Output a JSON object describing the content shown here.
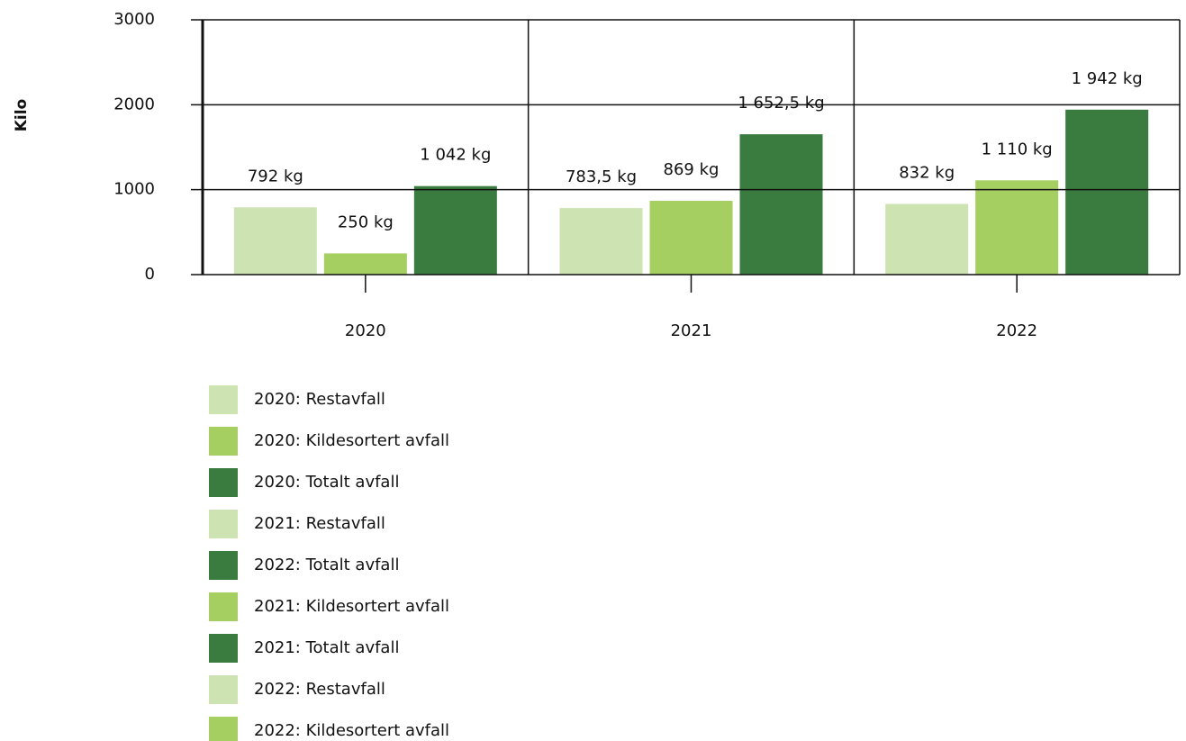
{
  "chart_data": {
    "type": "bar",
    "y_label": "Kilo",
    "categories": [
      "2020",
      "2021",
      "2022"
    ],
    "ylim": [
      0,
      3000
    ],
    "yticks": [
      0,
      1000,
      2000,
      3000
    ],
    "grid": true,
    "series": [
      {
        "name": "2020: Restavfall",
        "color": "#cde4b2",
        "values": [
          792,
          null,
          null
        ],
        "value_labels": [
          "792 kg",
          null,
          null
        ]
      },
      {
        "name": "2020: Kildesortert avfall",
        "color": "#a6cf62",
        "values": [
          250,
          null,
          null
        ],
        "value_labels": [
          "250 kg",
          null,
          null
        ]
      },
      {
        "name": "2020: Totalt avfall",
        "color": "#3a7b3f",
        "values": [
          1042,
          null,
          null
        ],
        "value_labels": [
          "1 042 kg",
          null,
          null
        ]
      },
      {
        "name": "2021: Restavfall",
        "color": "#cde4b2",
        "values": [
          null,
          783.5,
          null
        ],
        "value_labels": [
          null,
          "783,5 kg",
          null
        ]
      },
      {
        "name": "2022: Totalt avfall",
        "color": "#3a7b3f",
        "values": [
          null,
          null,
          1942
        ],
        "value_labels": [
          null,
          null,
          "1 942 kg"
        ]
      },
      {
        "name": "2021: Kildesortert avfall",
        "color": "#a6cf62",
        "values": [
          null,
          869,
          null
        ],
        "value_labels": [
          null,
          "869 kg",
          null
        ]
      },
      {
        "name": "2021: Totalt avfall",
        "color": "#3a7b3f",
        "values": [
          null,
          1652.5,
          null
        ],
        "value_labels": [
          null,
          "1 652,5 kg",
          null
        ]
      },
      {
        "name": "2022: Restavfall",
        "color": "#cde4b2",
        "values": [
          null,
          null,
          832
        ],
        "value_labels": [
          null,
          null,
          "832 kg"
        ]
      },
      {
        "name": "2022: Kildesortert avfall",
        "color": "#a6cf62",
        "values": [
          null,
          null,
          1110
        ],
        "value_labels": [
          null,
          null,
          "1 110 kg"
        ]
      }
    ]
  }
}
